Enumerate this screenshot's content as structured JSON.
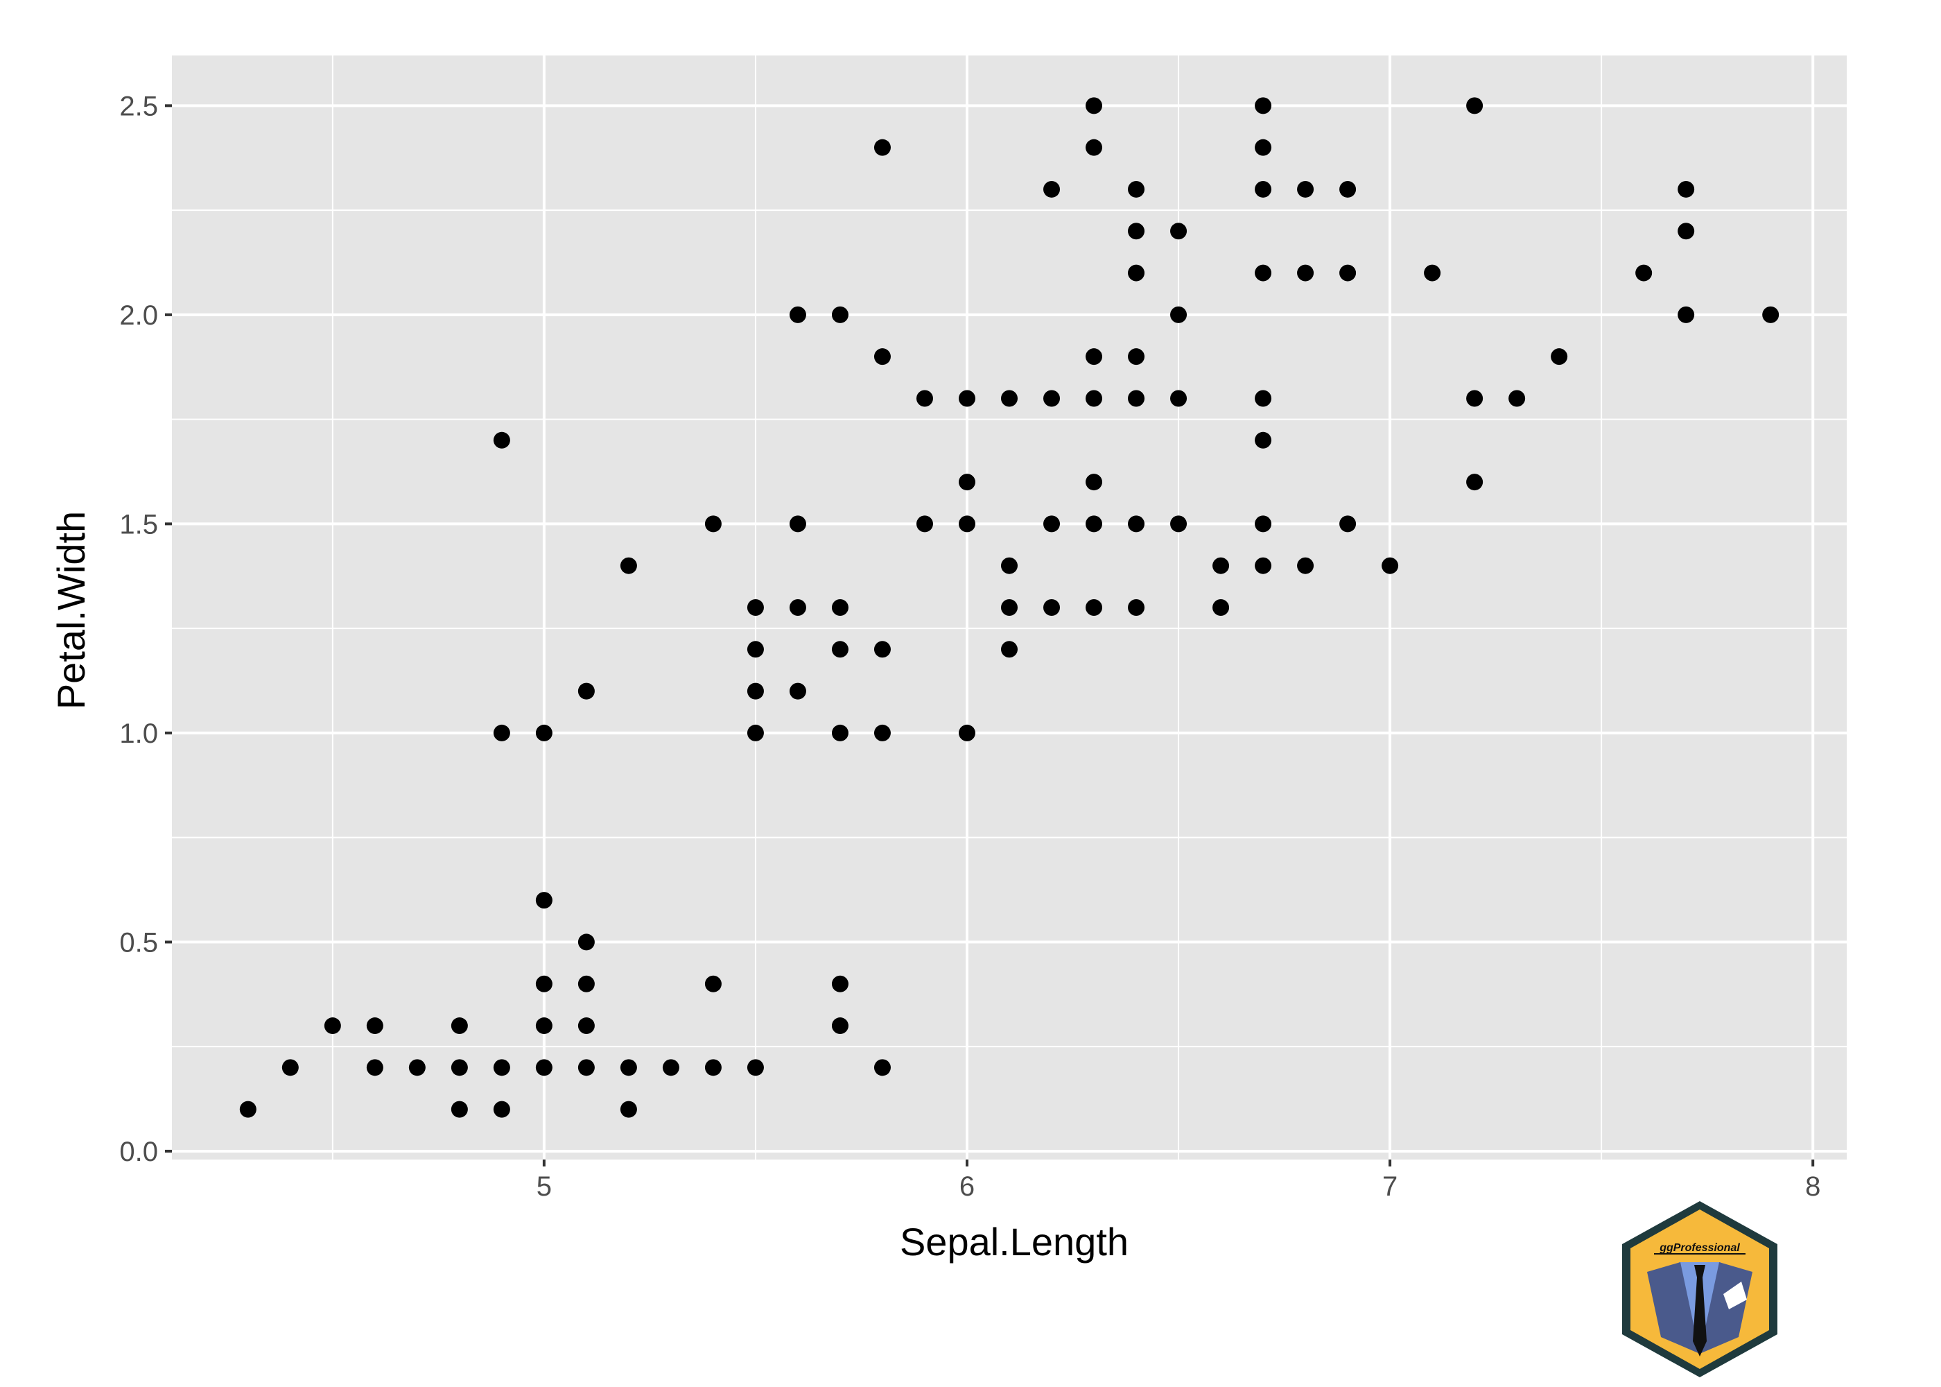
{
  "chart_data": {
    "type": "scatter",
    "xlabel": "Sepal.Length",
    "ylabel": "Petal.Width",
    "xlim": [
      4.12,
      8.08
    ],
    "ylim": [
      -0.02,
      2.62
    ],
    "x_ticks": [
      5,
      6,
      7,
      8
    ],
    "x_tick_labels": [
      "5",
      "6",
      "7",
      "8"
    ],
    "x_minor_ticks": [
      4.5,
      5.5,
      6.5,
      7.5
    ],
    "y_ticks": [
      0,
      0.5,
      1,
      1.5,
      2,
      2.5
    ],
    "y_tick_labels": [
      "0.0",
      "0.5",
      "1.0",
      "1.5",
      "2.0",
      "2.5"
    ],
    "y_minor_ticks": [
      0.25,
      0.75,
      1.25,
      1.75,
      2.25
    ],
    "grid": true,
    "panel_background": "#e5e5e5",
    "grid_color": "#ffffff",
    "point_color": "#000000",
    "points": [
      [
        4.3,
        0.1
      ],
      [
        4.4,
        0.2
      ],
      [
        4.5,
        0.3
      ],
      [
        4.6,
        0.3
      ],
      [
        4.6,
        0.2
      ],
      [
        4.7,
        0.2
      ],
      [
        4.8,
        0.3
      ],
      [
        4.8,
        0.2
      ],
      [
        4.8,
        0.1
      ],
      [
        4.9,
        0.2
      ],
      [
        4.9,
        0.1
      ],
      [
        4.9,
        1.0
      ],
      [
        4.9,
        1.7
      ],
      [
        5.0,
        0.6
      ],
      [
        5.0,
        0.4
      ],
      [
        5.0,
        0.3
      ],
      [
        5.0,
        0.2
      ],
      [
        5.0,
        1.0
      ],
      [
        5.1,
        0.5
      ],
      [
        5.1,
        0.4
      ],
      [
        5.1,
        0.3
      ],
      [
        5.1,
        0.2
      ],
      [
        5.1,
        1.1
      ],
      [
        5.2,
        0.2
      ],
      [
        5.2,
        0.1
      ],
      [
        5.2,
        1.4
      ],
      [
        5.3,
        0.2
      ],
      [
        5.4,
        0.4
      ],
      [
        5.4,
        0.2
      ],
      [
        5.4,
        1.5
      ],
      [
        5.5,
        0.2
      ],
      [
        5.5,
        1.0
      ],
      [
        5.5,
        1.1
      ],
      [
        5.5,
        1.2
      ],
      [
        5.5,
        1.3
      ],
      [
        5.6,
        1.1
      ],
      [
        5.6,
        1.3
      ],
      [
        5.6,
        1.5
      ],
      [
        5.6,
        2.0
      ],
      [
        5.7,
        0.4
      ],
      [
        5.7,
        0.3
      ],
      [
        5.7,
        1.0
      ],
      [
        5.7,
        1.2
      ],
      [
        5.7,
        1.3
      ],
      [
        5.7,
        2.0
      ],
      [
        5.8,
        0.2
      ],
      [
        5.8,
        1.0
      ],
      [
        5.8,
        1.2
      ],
      [
        5.8,
        1.9
      ],
      [
        5.8,
        2.4
      ],
      [
        5.9,
        1.5
      ],
      [
        5.9,
        1.8
      ],
      [
        6.0,
        1.0
      ],
      [
        6.0,
        1.5
      ],
      [
        6.0,
        1.6
      ],
      [
        6.0,
        1.8
      ],
      [
        6.1,
        1.2
      ],
      [
        6.1,
        1.3
      ],
      [
        6.1,
        1.4
      ],
      [
        6.1,
        1.8
      ],
      [
        6.2,
        1.3
      ],
      [
        6.2,
        1.5
      ],
      [
        6.2,
        1.8
      ],
      [
        6.2,
        2.3
      ],
      [
        6.3,
        1.3
      ],
      [
        6.3,
        1.5
      ],
      [
        6.3,
        1.6
      ],
      [
        6.3,
        1.8
      ],
      [
        6.3,
        1.9
      ],
      [
        6.3,
        2.4
      ],
      [
        6.3,
        2.5
      ],
      [
        6.4,
        1.3
      ],
      [
        6.4,
        1.5
      ],
      [
        6.4,
        1.8
      ],
      [
        6.4,
        1.9
      ],
      [
        6.4,
        2.1
      ],
      [
        6.4,
        2.2
      ],
      [
        6.4,
        2.3
      ],
      [
        6.5,
        1.5
      ],
      [
        6.5,
        1.8
      ],
      [
        6.5,
        2.0
      ],
      [
        6.5,
        2.2
      ],
      [
        6.6,
        1.3
      ],
      [
        6.6,
        1.4
      ],
      [
        6.7,
        1.4
      ],
      [
        6.7,
        1.5
      ],
      [
        6.7,
        1.7
      ],
      [
        6.7,
        1.8
      ],
      [
        6.7,
        2.1
      ],
      [
        6.7,
        2.3
      ],
      [
        6.7,
        2.4
      ],
      [
        6.7,
        2.5
      ],
      [
        6.8,
        1.4
      ],
      [
        6.8,
        2.1
      ],
      [
        6.8,
        2.3
      ],
      [
        6.9,
        1.5
      ],
      [
        6.9,
        2.1
      ],
      [
        6.9,
        2.3
      ],
      [
        7.0,
        1.4
      ],
      [
        7.1,
        2.1
      ],
      [
        7.2,
        1.6
      ],
      [
        7.2,
        1.8
      ],
      [
        7.2,
        2.5
      ],
      [
        7.3,
        1.8
      ],
      [
        7.4,
        1.9
      ],
      [
        7.6,
        2.1
      ],
      [
        7.7,
        2.0
      ],
      [
        7.7,
        2.2
      ],
      [
        7.7,
        2.3
      ],
      [
        7.9,
        2.0
      ]
    ]
  },
  "logo": {
    "text": "ggProfessional",
    "colors": {
      "hex_fill": "#f6b93b",
      "hex_border": "#1f3a3d",
      "jacket": "#4a5a8c",
      "shirt": "#7a9be0",
      "tie": "#111111"
    }
  }
}
